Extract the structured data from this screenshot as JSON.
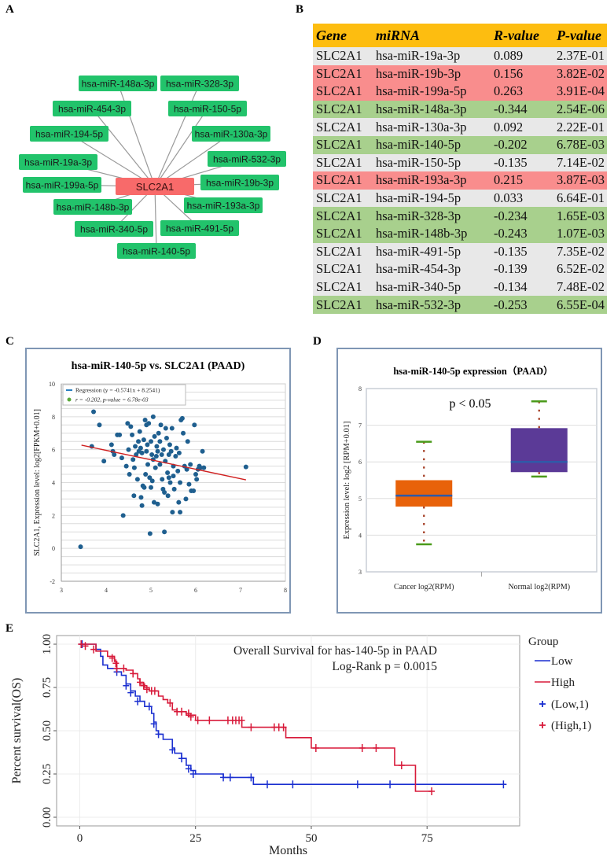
{
  "panels": {
    "a": "A",
    "b": "B",
    "c": "C",
    "d": "D",
    "e": "E"
  },
  "network": {
    "center": "SLC2A1",
    "center_color": "#f86a6a",
    "node_color": "#22c36b",
    "nodes": [
      "hsa-miR-148a-3p",
      "hsa-miR-328-3p",
      "hsa-miR-454-3p",
      "hsa-miR-150-5p",
      "hsa-miR-194-5p",
      "hsa-miR-130a-3p",
      "hsa-miR-19a-3p",
      "hsa-miR-532-3p",
      "hsa-miR-199a-5p",
      "hsa-miR-19b-3p",
      "hsa-miR-148b-3p",
      "hsa-miR-193a-3p",
      "hsa-miR-340-5p",
      "hsa-miR-491-5p",
      "hsa-miR-140-5p"
    ]
  },
  "table": {
    "headers": [
      "Gene",
      "miRNA",
      "R-value",
      "P-value"
    ],
    "rows": [
      {
        "gene": "SLC2A1",
        "mirna": "hsa-miR-19a-3p",
        "r": "0.089",
        "p": "2.37E-01",
        "class": "neutral"
      },
      {
        "gene": "SLC2A1",
        "mirna": "hsa-miR-19b-3p",
        "r": "0.156",
        "p": "3.82E-02",
        "class": "pos"
      },
      {
        "gene": "SLC2A1",
        "mirna": "hsa-miR-199a-5p",
        "r": "0.263",
        "p": "3.91E-04",
        "class": "pos"
      },
      {
        "gene": "SLC2A1",
        "mirna": "hsa-miR-148a-3p",
        "r": "-0.344",
        "p": "2.54E-06",
        "class": "neg"
      },
      {
        "gene": "SLC2A1",
        "mirna": "hsa-miR-130a-3p",
        "r": "0.092",
        "p": "2.22E-01",
        "class": "neutral"
      },
      {
        "gene": "SLC2A1",
        "mirna": "hsa-miR-140-5p",
        "r": "-0.202",
        "p": "6.78E-03",
        "class": "neg"
      },
      {
        "gene": "SLC2A1",
        "mirna": "hsa-miR-150-5p",
        "r": "-0.135",
        "p": "7.14E-02",
        "class": "neutral"
      },
      {
        "gene": "SLC2A1",
        "mirna": "hsa-miR-193a-3p",
        "r": "0.215",
        "p": "3.87E-03",
        "class": "pos"
      },
      {
        "gene": "SLC2A1",
        "mirna": "hsa-miR-194-5p",
        "r": "0.033",
        "p": "6.64E-01",
        "class": "neutral"
      },
      {
        "gene": "SLC2A1",
        "mirna": "hsa-miR-328-3p",
        "r": "-0.234",
        "p": "1.65E-03",
        "class": "neg"
      },
      {
        "gene": "SLC2A1",
        "mirna": "hsa-miR-148b-3p",
        "r": "-0.243",
        "p": "1.07E-03",
        "class": "neg"
      },
      {
        "gene": "SLC2A1",
        "mirna": "hsa-miR-491-5p",
        "r": "-0.135",
        "p": "7.35E-02",
        "class": "neutral"
      },
      {
        "gene": "SLC2A1",
        "mirna": "hsa-miR-454-3p",
        "r": "-0.139",
        "p": "6.52E-02",
        "class": "neutral"
      },
      {
        "gene": "SLC2A1",
        "mirna": "hsa-miR-340-5p",
        "r": "-0.134",
        "p": "7.48E-02",
        "class": "neutral"
      },
      {
        "gene": "SLC2A1",
        "mirna": "hsa-miR-532-3p",
        "r": "-0.253",
        "p": "6.55E-04",
        "class": "neg"
      }
    ]
  },
  "chart_data": [
    {
      "type": "scatter",
      "title": "hsa-miR-140-5p vs. SLC2A1 (PAAD)",
      "xlabel": "",
      "ylabel": "SLC2A1, Expression level: log2[FPKM+0.01]",
      "xlim": [
        3,
        8
      ],
      "ylim": [
        -2,
        10
      ],
      "xticks": [
        3,
        4,
        5,
        6,
        7,
        8
      ],
      "yticks": [
        -2,
        0,
        2,
        4,
        6,
        8,
        10
      ],
      "grid": true,
      "legend": [
        "Regression (y = -0.5741x + 8.2541)",
        "r = -0.202, p-value = 6.78e-03"
      ],
      "legend_position": "top-left",
      "regression": {
        "slope": -0.5741,
        "intercept": 8.2541,
        "x_range": [
          3.45,
          7.12
        ],
        "color": "#d02020"
      },
      "point_color": "#1f5f8f",
      "points": [
        [
          3.43,
          0.1
        ],
        [
          3.68,
          6.2
        ],
        [
          3.72,
          8.3
        ],
        [
          3.85,
          7.5
        ],
        [
          3.95,
          5.3
        ],
        [
          4.12,
          6.3
        ],
        [
          4.15,
          5.9
        ],
        [
          4.18,
          5.7
        ],
        [
          4.25,
          6.9
        ],
        [
          4.3,
          6.9
        ],
        [
          4.35,
          5.5
        ],
        [
          4.38,
          2.0
        ],
        [
          4.45,
          5.0
        ],
        [
          4.48,
          7.6
        ],
        [
          4.5,
          6.0
        ],
        [
          4.52,
          4.5
        ],
        [
          4.55,
          7.4
        ],
        [
          4.58,
          6.9
        ],
        [
          4.6,
          5.4
        ],
        [
          4.62,
          3.2
        ],
        [
          4.63,
          4.9
        ],
        [
          4.65,
          6.2
        ],
        [
          4.67,
          5.7
        ],
        [
          4.7,
          4.2
        ],
        [
          4.72,
          6.5
        ],
        [
          4.73,
          5.9
        ],
        [
          4.75,
          7.1
        ],
        [
          4.77,
          6.1
        ],
        [
          4.78,
          3.1
        ],
        [
          4.8,
          5.8
        ],
        [
          4.8,
          2.6
        ],
        [
          4.82,
          3.8
        ],
        [
          4.84,
          6.6
        ],
        [
          4.85,
          3.7
        ],
        [
          4.87,
          7.8
        ],
        [
          4.88,
          4.5
        ],
        [
          4.9,
          5.9
        ],
        [
          4.9,
          7.5
        ],
        [
          4.92,
          6.3
        ],
        [
          4.93,
          5.1
        ],
        [
          4.95,
          7.6
        ],
        [
          4.97,
          4.3
        ],
        [
          4.98,
          0.9
        ],
        [
          5.0,
          6.5
        ],
        [
          5.0,
          3.7
        ],
        [
          5.02,
          5.7
        ],
        [
          5.03,
          4.1
        ],
        [
          5.05,
          8.0
        ],
        [
          5.05,
          5.4
        ],
        [
          5.07,
          2.8
        ],
        [
          5.08,
          6.8
        ],
        [
          5.1,
          4.9
        ],
        [
          5.12,
          5.6
        ],
        [
          5.13,
          6.2
        ],
        [
          5.15,
          2.7
        ],
        [
          5.15,
          5.9
        ],
        [
          5.17,
          7.0
        ],
        [
          5.2,
          6.5
        ],
        [
          5.2,
          5.1
        ],
        [
          5.22,
          7.5
        ],
        [
          5.24,
          5.7
        ],
        [
          5.25,
          4.2
        ],
        [
          5.27,
          3.6
        ],
        [
          5.28,
          6.0
        ],
        [
          5.3,
          3.4
        ],
        [
          5.3,
          1.0
        ],
        [
          5.32,
          5.3
        ],
        [
          5.33,
          7.3
        ],
        [
          5.35,
          6.7
        ],
        [
          5.37,
          4.6
        ],
        [
          5.38,
          3.2
        ],
        [
          5.4,
          5.7
        ],
        [
          5.4,
          4.3
        ],
        [
          5.42,
          6.3
        ],
        [
          5.43,
          4.0
        ],
        [
          5.45,
          5.9
        ],
        [
          5.47,
          7.3
        ],
        [
          5.48,
          2.2
        ],
        [
          5.5,
          5.0
        ],
        [
          5.5,
          4.4
        ],
        [
          5.52,
          3.6
        ],
        [
          5.55,
          5.6
        ],
        [
          5.57,
          6.1
        ],
        [
          5.6,
          4.7
        ],
        [
          5.62,
          2.8
        ],
        [
          5.63,
          5.8
        ],
        [
          5.65,
          2.2
        ],
        [
          5.65,
          4.0
        ],
        [
          5.67,
          7.8
        ],
        [
          5.7,
          7.9
        ],
        [
          5.72,
          7.0
        ],
        [
          5.75,
          5.0
        ],
        [
          5.78,
          3.0
        ],
        [
          5.8,
          4.8
        ],
        [
          5.82,
          6.5
        ],
        [
          5.85,
          3.9
        ],
        [
          5.88,
          5.1
        ],
        [
          5.9,
          3.5
        ],
        [
          5.95,
          3.5
        ],
        [
          5.97,
          7.5
        ],
        [
          6.0,
          4.5
        ],
        [
          6.02,
          4.2
        ],
        [
          6.05,
          4.8
        ],
        [
          6.08,
          5.0
        ],
        [
          6.1,
          4.9
        ],
        [
          6.15,
          5.9
        ],
        [
          6.18,
          4.9
        ],
        [
          7.12,
          4.95
        ]
      ]
    },
    {
      "type": "box",
      "title": "hsa-miR-140-5p expression（PAAD）",
      "ylabel": "Expression level: log2 [RPM+0.01]",
      "ylim": [
        3,
        8
      ],
      "yticks": [
        3,
        4,
        5,
        6,
        7,
        8
      ],
      "annotation": "p < 0.05",
      "categories": [
        "Cancer log2(RPM)",
        "Normal log2(RPM)"
      ],
      "series": [
        {
          "name": "Cancer log2(RPM)",
          "min": 3.75,
          "q1": 4.78,
          "median": 5.08,
          "q3": 5.5,
          "max": 6.55,
          "color": "#e8620a"
        },
        {
          "name": "Normal log2(RPM)",
          "min": 5.6,
          "q1": 5.72,
          "median": 6.0,
          "q3": 6.92,
          "max": 7.65,
          "color": "#5b3a97"
        }
      ]
    },
    {
      "type": "line",
      "title": "Overall Survival for has-140-5p in PAAD",
      "subtitle": "Log-Rank p = 0.0015",
      "xlabel": "Months",
      "ylabel": "Percent survival(OS)",
      "xlim": [
        -5,
        95
      ],
      "ylim": [
        -0.05,
        1.05
      ],
      "xticks": [
        0,
        25,
        50,
        75
      ],
      "yticks": [
        "0.00",
        "0.25",
        "0.50",
        "0.75",
        "1.00"
      ],
      "legend_title": "Group",
      "legend": [
        "Low",
        "High",
        "(Low,1)",
        "(High,1)"
      ],
      "legend_position": "right",
      "series": [
        {
          "name": "Low",
          "color": "#1a2fd0",
          "steps": [
            [
              0,
              1.0
            ],
            [
              3.5,
              0.97
            ],
            [
              4.5,
              0.93
            ],
            [
              5,
              0.88
            ],
            [
              6,
              0.86
            ],
            [
              8,
              0.84
            ],
            [
              9,
              0.82
            ],
            [
              10,
              0.77
            ],
            [
              11,
              0.73
            ],
            [
              12,
              0.7
            ],
            [
              13,
              0.67
            ],
            [
              14,
              0.64
            ],
            [
              15.5,
              0.6
            ],
            [
              16,
              0.55
            ],
            [
              16.5,
              0.5
            ],
            [
              17,
              0.48
            ],
            [
              18,
              0.45
            ],
            [
              20,
              0.4
            ],
            [
              20.5,
              0.37
            ],
            [
              22,
              0.34
            ],
            [
              23,
              0.3
            ],
            [
              24,
              0.27
            ],
            [
              25,
              0.25
            ],
            [
              31,
              0.23
            ],
            [
              37.5,
              0.19
            ],
            [
              92,
              0.19
            ]
          ],
          "censors": [
            [
              0.5,
              1.0
            ],
            [
              8,
              0.84
            ],
            [
              10,
              0.76
            ],
            [
              11,
              0.72
            ],
            [
              12.5,
              0.67
            ],
            [
              15,
              0.64
            ],
            [
              16,
              0.54
            ],
            [
              17,
              0.48
            ],
            [
              20,
              0.39
            ],
            [
              22,
              0.34
            ],
            [
              23.5,
              0.28
            ],
            [
              24.5,
              0.25
            ],
            [
              31,
              0.23
            ],
            [
              32.5,
              0.23
            ],
            [
              37,
              0.23
            ],
            [
              40.5,
              0.19
            ],
            [
              46,
              0.19
            ],
            [
              60,
              0.19
            ],
            [
              67,
              0.19
            ],
            [
              91.5,
              0.19
            ]
          ]
        },
        {
          "name": "High",
          "color": "#d81a3a",
          "steps": [
            [
              0,
              1.0
            ],
            [
              3.5,
              0.96
            ],
            [
              6,
              0.93
            ],
            [
              7.5,
              0.9
            ],
            [
              8,
              0.86
            ],
            [
              10,
              0.85
            ],
            [
              11.5,
              0.83
            ],
            [
              12.5,
              0.8
            ],
            [
              13,
              0.77
            ],
            [
              14,
              0.75
            ],
            [
              15,
              0.73
            ],
            [
              17,
              0.7
            ],
            [
              18,
              0.68
            ],
            [
              19,
              0.66
            ],
            [
              20,
              0.62
            ],
            [
              21,
              0.61
            ],
            [
              23,
              0.59
            ],
            [
              25,
              0.56
            ],
            [
              35,
              0.52
            ],
            [
              44.5,
              0.46
            ],
            [
              50,
              0.4
            ],
            [
              68,
              0.3
            ],
            [
              72.5,
              0.15
            ],
            [
              76,
              0.15
            ]
          ],
          "censors": [
            [
              0.3,
              1.0
            ],
            [
              1.2,
              0.99
            ],
            [
              3,
              0.97
            ],
            [
              7,
              0.92
            ],
            [
              7.8,
              0.89
            ],
            [
              8,
              0.86
            ],
            [
              9.5,
              0.86
            ],
            [
              11.5,
              0.83
            ],
            [
              13,
              0.78
            ],
            [
              13.8,
              0.76
            ],
            [
              14.5,
              0.74
            ],
            [
              15.5,
              0.73
            ],
            [
              16.2,
              0.73
            ],
            [
              19.5,
              0.66
            ],
            [
              21,
              0.61
            ],
            [
              22,
              0.61
            ],
            [
              23.5,
              0.6
            ],
            [
              24,
              0.58
            ],
            [
              25.5,
              0.56
            ],
            [
              28,
              0.56
            ],
            [
              32,
              0.56
            ],
            [
              33,
              0.56
            ],
            [
              33.7,
              0.56
            ],
            [
              34.4,
              0.56
            ],
            [
              35,
              0.56
            ],
            [
              37,
              0.52
            ],
            [
              42,
              0.52
            ],
            [
              43,
              0.52
            ],
            [
              44,
              0.52
            ],
            [
              51,
              0.4
            ],
            [
              61,
              0.4
            ],
            [
              64,
              0.4
            ],
            [
              69.5,
              0.3
            ],
            [
              76,
              0.15
            ]
          ]
        }
      ]
    }
  ]
}
